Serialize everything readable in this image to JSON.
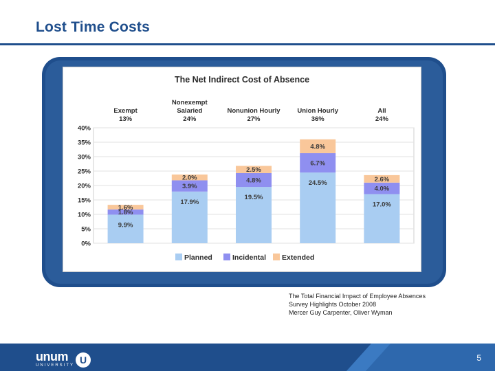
{
  "slide": {
    "title": "Lost Time Costs",
    "page_number": "5",
    "logo_text": "unum",
    "logo_subtext": "UNIVERSITY",
    "logo_mark": "U"
  },
  "source": {
    "line1": "The Total Financial Impact of Employee Absences",
    "line2": "Survey Highlights October 2008",
    "line3": "Mercer  Guy Carpenter, Oliver Wyman"
  },
  "colors": {
    "planned": "#a9cdf2",
    "incidental": "#8f8ff0",
    "extended": "#f9c79a",
    "brand": "#1f4e8c"
  },
  "chart_data": {
    "type": "bar",
    "stacked": true,
    "title": "The Net Indirect Cost of Absence",
    "categories": [
      {
        "name_lines": [
          "Exempt"
        ],
        "share": "13%"
      },
      {
        "name_lines": [
          "Nonexempt",
          "Salaried"
        ],
        "share": "24%"
      },
      {
        "name_lines": [
          "Nonunion Hourly"
        ],
        "share": "27%"
      },
      {
        "name_lines": [
          "Union Hourly"
        ],
        "share": "36%"
      },
      {
        "name_lines": [
          "All"
        ],
        "share": "24%"
      }
    ],
    "series": [
      {
        "name": "Planned",
        "values": [
          9.9,
          17.9,
          19.5,
          24.5,
          17.0
        ],
        "labels": [
          "9.9%",
          "17.9%",
          "19.5%",
          "24.5%",
          "17.0%"
        ]
      },
      {
        "name": "Incidental",
        "values": [
          1.8,
          3.9,
          4.8,
          6.7,
          4.0
        ],
        "labels": [
          "1.8%",
          "3.9%",
          "4.8%",
          "6.7%",
          "4.0%"
        ]
      },
      {
        "name": "Extended",
        "values": [
          1.6,
          2.0,
          2.5,
          4.8,
          2.6
        ],
        "labels": [
          "1.6%",
          "2.0%",
          "2.5%",
          "4.8%",
          "2.6%"
        ]
      }
    ],
    "y_ticks": [
      "0%",
      "5%",
      "10%",
      "15%",
      "20%",
      "25%",
      "30%",
      "35%",
      "40%"
    ],
    "ylim": [
      0,
      40
    ],
    "ylabel": "",
    "xlabel": "",
    "grid": true,
    "legend_position": "bottom"
  }
}
